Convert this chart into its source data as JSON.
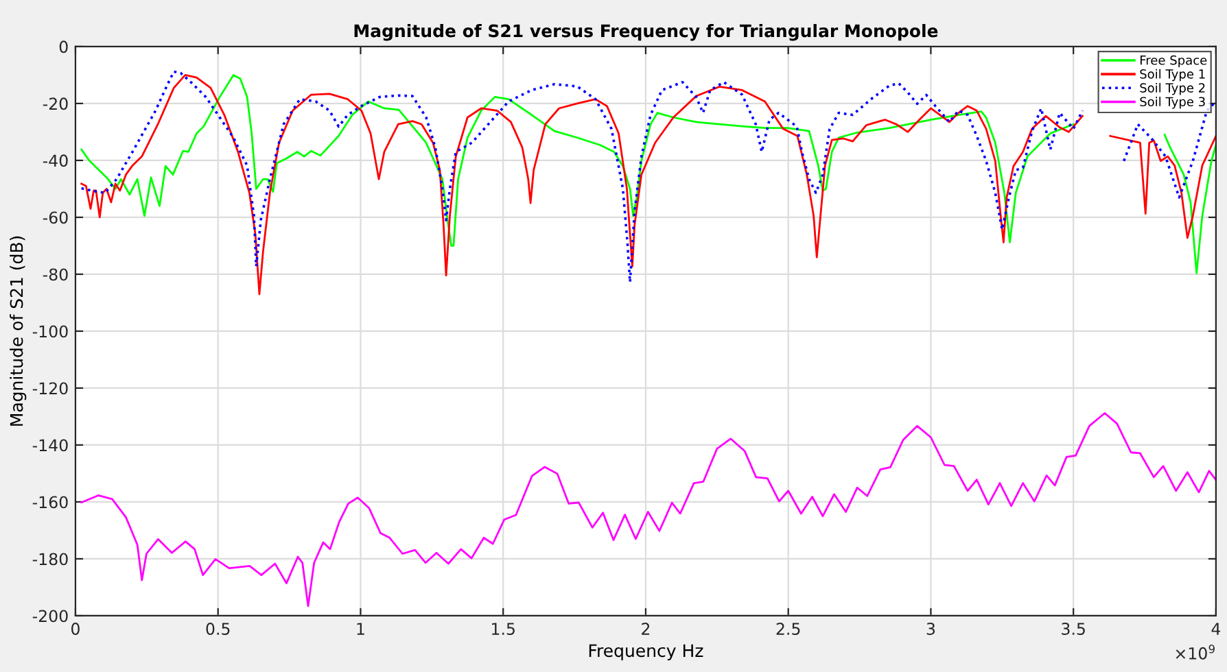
{
  "chart_data": {
    "type": "line",
    "title": "Magnitude of S21 versus Frequency for Triangular Monopole",
    "xlabel": "Frequency Hz",
    "ylabel": "Magnitude of S21 (dB)",
    "annotations": [
      "×10$^{9}$"
    ],
    "xlim": [
      0,
      4
    ],
    "xticks": [
      0,
      0.5,
      1,
      1.5,
      2,
      2.5,
      3,
      3.5,
      4
    ],
    "ylim": [
      -200,
      0
    ],
    "yticks": [
      -200,
      -180,
      -160,
      -140,
      -120,
      -100,
      -80,
      -60,
      -40,
      -20,
      0
    ],
    "grid": true,
    "legend": "top right",
    "series": [
      {
        "name": "Free Space",
        "color": "#00ff00",
        "line_style": "solid",
        "x": [
          0.021,
          0.048,
          0.112,
          0.14,
          0.16,
          0.19,
          0.217,
          0.242,
          0.265,
          0.295,
          0.316,
          0.342,
          0.377,
          0.396,
          0.425,
          0.45,
          0.506,
          0.554,
          0.578,
          0.602,
          0.618,
          0.634,
          0.658,
          0.674,
          0.693,
          0.706,
          0.738,
          0.778,
          0.802,
          0.827,
          0.859,
          0.923,
          0.971,
          1.027,
          1.083,
          1.134,
          1.23,
          1.287,
          1.303,
          1.318,
          1.326,
          1.342,
          1.375,
          1.423,
          1.471,
          1.519,
          1.6,
          1.68,
          1.76,
          1.84,
          1.889,
          1.92,
          1.945,
          1.956,
          1.969,
          1.985,
          2.017,
          2.041,
          2.097,
          2.177,
          2.258,
          2.338,
          2.418,
          2.498,
          2.573,
          2.605,
          2.621,
          2.632,
          2.653,
          2.677,
          2.742,
          2.855,
          3.0,
          3.097,
          3.177,
          3.194,
          3.226,
          3.258,
          3.277,
          3.298,
          3.339,
          3.419,
          3.5,
          3.548,
          3.7,
          3.82,
          3.839,
          3.887,
          3.911,
          3.932,
          3.952,
          3.984,
          4.0
        ],
        "values": [
          -36.2,
          -40,
          -46.3,
          -50,
          -46.6,
          -52,
          -46.6,
          -59.5,
          -46,
          -56,
          -42,
          -45,
          -36.7,
          -37,
          -30.5,
          -28,
          -17.7,
          -10,
          -11.3,
          -17.7,
          -30.5,
          -50,
          -46.6,
          -46.6,
          -51,
          -41,
          -39.4,
          -37,
          -38.6,
          -36.7,
          -38.3,
          -31.4,
          -24,
          -19.3,
          -21.7,
          -22.2,
          -33.8,
          -46.6,
          -59.5,
          -70,
          -70,
          -46.6,
          -32,
          -22.5,
          -17.7,
          -18.5,
          -24,
          -29.7,
          -32,
          -34.6,
          -37,
          -42,
          -50,
          -59.5,
          -53,
          -40.2,
          -27.3,
          -23.3,
          -24.9,
          -26.5,
          -27.3,
          -28,
          -28.6,
          -28.6,
          -29.7,
          -41.8,
          -50.6,
          -50,
          -37,
          -32,
          -30.2,
          -28.6,
          -25.7,
          -24,
          -22.8,
          -24.9,
          -33.8,
          -51.4,
          -68.8,
          -51.4,
          -38.6,
          -30.5,
          -27.3,
          null,
          null,
          -31,
          -35.4,
          -45,
          -54.7,
          -79.6,
          -59.5,
          -40.2,
          -34.6
        ]
      },
      {
        "name": "Soil Type 1",
        "color": "#ff0000",
        "line_style": "solid",
        "x": [
          0.021,
          0.037,
          0.053,
          0.064,
          0.072,
          0.085,
          0.096,
          0.109,
          0.125,
          0.14,
          0.156,
          0.177,
          0.2,
          0.233,
          0.289,
          0.345,
          0.385,
          0.425,
          0.474,
          0.522,
          0.57,
          0.61,
          0.631,
          0.645,
          0.658,
          0.682,
          0.714,
          0.762,
          0.827,
          0.891,
          0.955,
          1.003,
          1.035,
          1.064,
          1.083,
          1.132,
          1.182,
          1.214,
          1.254,
          1.278,
          1.291,
          1.3,
          1.313,
          1.334,
          1.375,
          1.423,
          1.479,
          1.527,
          1.567,
          1.588,
          1.596,
          1.607,
          1.648,
          1.696,
          1.76,
          1.824,
          1.864,
          1.905,
          1.934,
          1.945,
          1.953,
          1.961,
          1.985,
          2.033,
          2.097,
          2.177,
          2.258,
          2.338,
          2.418,
          2.482,
          2.532,
          2.565,
          2.589,
          2.6,
          2.613,
          2.629,
          2.653,
          2.694,
          2.726,
          2.774,
          2.839,
          2.879,
          2.919,
          2.96,
          3.0,
          3.032,
          3.065,
          3.097,
          3.129,
          3.161,
          3.194,
          3.226,
          3.245,
          3.255,
          3.266,
          3.29,
          3.323,
          3.355,
          3.403,
          3.452,
          3.484,
          3.532,
          3.565,
          3.6,
          3.629,
          3.734,
          3.753,
          3.766,
          3.782,
          3.806,
          3.831,
          3.855,
          3.879,
          3.9,
          3.919,
          3.952,
          4.0
        ],
        "values": [
          -48.2,
          -49,
          -57,
          -50.6,
          -50.6,
          -60,
          -51.4,
          -50,
          -54.7,
          -48.2,
          -50.6,
          -45,
          -41.8,
          -38.6,
          -27.3,
          -14.5,
          -10,
          -10.9,
          -14.5,
          -24,
          -37,
          -51.4,
          -66,
          -87,
          -72,
          -51.4,
          -33.8,
          -22.5,
          -16.9,
          -16.6,
          -18.5,
          -22.5,
          -30.5,
          -46.6,
          -37,
          -27.3,
          -26.2,
          -27.3,
          -33.8,
          -43.4,
          -62.7,
          -80.4,
          -59.5,
          -38.6,
          -24.9,
          -21.7,
          -22.5,
          -26.5,
          -35.4,
          -46.6,
          -55,
          -43.4,
          -27.3,
          -21.7,
          -20,
          -18.5,
          -20.9,
          -30.5,
          -50,
          -66,
          -77.2,
          -62.7,
          -45,
          -33.8,
          -24.9,
          -17.4,
          -14.1,
          -15.3,
          -19.3,
          -28.9,
          -31.4,
          -45,
          -59.5,
          -74,
          -59.5,
          -41.8,
          -32.8,
          -32.3,
          -33.3,
          -27.6,
          -25.7,
          -27.3,
          -30,
          -25.7,
          -21.7,
          -24,
          -26.5,
          -23.3,
          -20.9,
          -22.5,
          -28.9,
          -40.2,
          -59.5,
          -68.8,
          -53,
          -42,
          -37,
          -28.9,
          -24.4,
          -28.4,
          -30,
          -24.4,
          null,
          null,
          -31.4,
          -33.8,
          -58.7,
          -33.8,
          -33,
          -40.2,
          -38.6,
          -41.8,
          -51.4,
          -67.2,
          -59.5,
          -41.8,
          -31.4
        ]
      },
      {
        "name": "Soil Type 2",
        "color": "#0000ff",
        "line_style": "dotted",
        "x": [
          0.021,
          0.056,
          0.104,
          0.144,
          0.2,
          0.281,
          0.321,
          0.345,
          0.369,
          0.409,
          0.457,
          0.506,
          0.554,
          0.602,
          0.626,
          0.634,
          0.65,
          0.682,
          0.73,
          0.787,
          0.843,
          0.891,
          0.923,
          0.955,
          1.003,
          1.067,
          1.132,
          1.182,
          1.23,
          1.262,
          1.287,
          1.3,
          1.313,
          1.334,
          1.39,
          1.455,
          1.519,
          1.6,
          1.68,
          1.76,
          1.824,
          1.88,
          1.92,
          1.936,
          1.945,
          1.961,
          1.985,
          2.017,
          2.057,
          2.129,
          2.177,
          2.201,
          2.226,
          2.274,
          2.338,
          2.386,
          2.407,
          2.434,
          2.466,
          2.53,
          2.548,
          2.573,
          2.597,
          2.621,
          2.645,
          2.677,
          2.726,
          2.79,
          2.855,
          2.887,
          2.919,
          2.952,
          2.984,
          3.016,
          3.065,
          3.097,
          3.129,
          3.161,
          3.194,
          3.226,
          3.25,
          3.274,
          3.298,
          3.323,
          3.355,
          3.387,
          3.419,
          3.452,
          3.5,
          3.532,
          3.565,
          3.62,
          3.677,
          3.726,
          3.774,
          3.823,
          3.871,
          3.919,
          3.968,
          4.0
        ],
        "values": [
          -49.8,
          -50.6,
          -51.4,
          -46.6,
          -37,
          -22.5,
          -13.7,
          -8.8,
          -9.3,
          -12.9,
          -17.7,
          -24.9,
          -32,
          -41.8,
          -59.5,
          -77.2,
          -61,
          -46.6,
          -27.3,
          -18.5,
          -19.3,
          -22.5,
          -28.1,
          -24,
          -20.9,
          -17.7,
          -17.2,
          -17.4,
          -24.9,
          -35.4,
          -50,
          -61,
          -50,
          -37,
          -33.8,
          -26.5,
          -19.3,
          -15.3,
          -13.2,
          -14,
          -18.5,
          -28.9,
          -50,
          -69,
          -82.8,
          -57.9,
          -38.6,
          -24,
          -15.3,
          -12.5,
          -17.7,
          -23.3,
          -15.3,
          -12.5,
          -16.9,
          -27.3,
          -37,
          -25.7,
          -23.3,
          -28.1,
          -37,
          -46.6,
          -51.4,
          -45,
          -29,
          -23.3,
          -24,
          -18.5,
          -13.7,
          -12.9,
          -16.1,
          -20.1,
          -17,
          -20.9,
          -26.5,
          -22.5,
          -24,
          -31.4,
          -40.2,
          -51.4,
          -64.3,
          -53,
          -43.4,
          -42.6,
          -29.7,
          -21.7,
          -36.2,
          -23.3,
          -28.9,
          -22.5,
          null,
          null,
          -40.2,
          -27.3,
          -32.3,
          -38.6,
          -53,
          -40.2,
          -22.5,
          -19.3
        ]
      },
      {
        "name": "Soil Type 3",
        "color": "#ff00ff",
        "line_style": "solid",
        "x": [
          0.021,
          0.08,
          0.129,
          0.177,
          0.217,
          0.233,
          0.249,
          0.29,
          0.338,
          0.386,
          0.418,
          0.447,
          0.491,
          0.539,
          0.611,
          0.652,
          0.7,
          0.74,
          0.78,
          0.796,
          0.816,
          0.837,
          0.869,
          0.893,
          0.925,
          0.957,
          0.99,
          1.03,
          1.07,
          1.102,
          1.147,
          1.191,
          1.228,
          1.266,
          1.308,
          1.352,
          1.389,
          1.432,
          1.464,
          1.504,
          1.545,
          1.601,
          1.646,
          1.69,
          1.73,
          1.765,
          1.813,
          1.85,
          1.887,
          1.927,
          1.965,
          2.008,
          2.048,
          2.092,
          2.121,
          2.169,
          2.202,
          2.25,
          2.298,
          2.347,
          2.387,
          2.427,
          2.468,
          2.5,
          2.545,
          2.584,
          2.621,
          2.661,
          2.702,
          2.742,
          2.777,
          2.823,
          2.858,
          2.903,
          2.952,
          3.0,
          3.048,
          3.081,
          3.129,
          3.161,
          3.202,
          3.242,
          3.282,
          3.323,
          3.363,
          3.406,
          3.435,
          3.476,
          3.508,
          3.556,
          3.61,
          3.653,
          3.702,
          3.734,
          3.782,
          3.815,
          3.86,
          3.9,
          3.94,
          3.976,
          4.0
        ],
        "values": [
          -160.2,
          -157.7,
          -159,
          -165.4,
          -175,
          -187.5,
          -178.2,
          -173.1,
          -177.9,
          -173.9,
          -176.6,
          -185.7,
          -180.1,
          -183.3,
          -182.5,
          -185.7,
          -181.7,
          -188.6,
          -179.3,
          -181.4,
          -196.6,
          -181.4,
          -174.2,
          -176.6,
          -167,
          -160.6,
          -158.5,
          -162.2,
          -171,
          -172.6,
          -178.2,
          -176.9,
          -181.4,
          -177.9,
          -181.7,
          -176.6,
          -179.8,
          -172.6,
          -174.7,
          -166.2,
          -164.6,
          -150.9,
          -147.7,
          -150.1,
          -160.6,
          -160.2,
          -169,
          -163.8,
          -173.4,
          -164.5,
          -173,
          -163.5,
          -170.2,
          -160.3,
          -164.1,
          -153.4,
          -152.9,
          -141.3,
          -137.8,
          -142.1,
          -151.3,
          -151.7,
          -159.8,
          -156.1,
          -164.1,
          -158.2,
          -165,
          -157.3,
          -163.5,
          -155,
          -157.9,
          -148.6,
          -147.8,
          -138.2,
          -133.3,
          -137.3,
          -147,
          -147.4,
          -156.1,
          -152.2,
          -160.9,
          -153.4,
          -161.4,
          -153.4,
          -159.8,
          -150.7,
          -154.2,
          -144.2,
          -143.7,
          -133.3,
          -128.8,
          -132.5,
          -142.6,
          -142.9,
          -151.3,
          -147.4,
          -156.1,
          -149.6,
          -156.6,
          -149.1,
          -152.3
        ]
      }
    ]
  }
}
